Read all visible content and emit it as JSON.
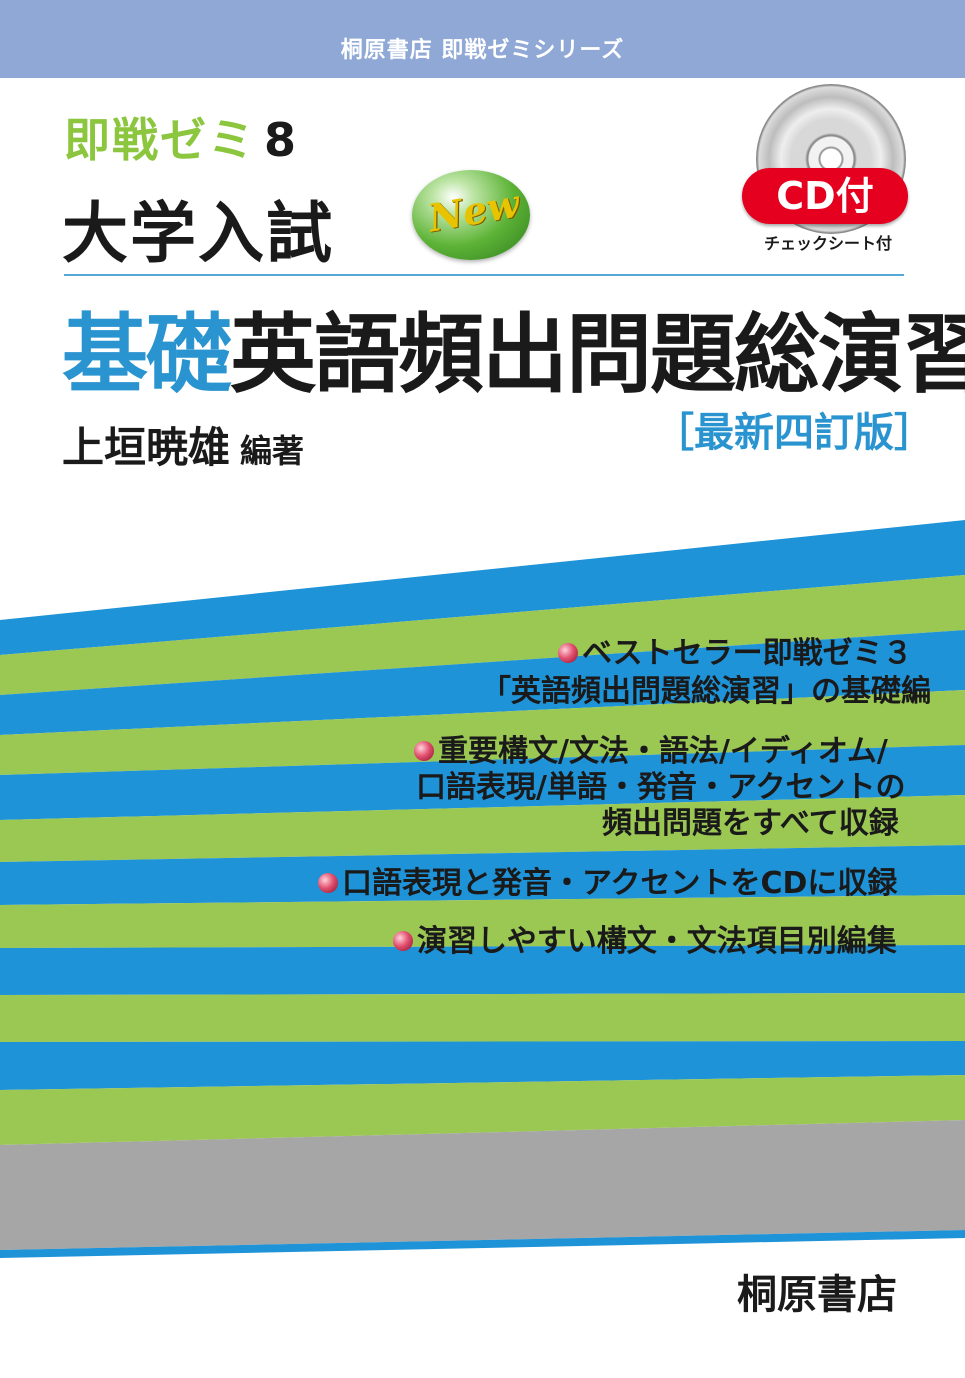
{
  "series_label": "桐原書店 即戦ゼミシリーズ",
  "volume": {
    "label": "即戦ゼミ",
    "number": "8"
  },
  "exam_title": "大学入試",
  "new_badge": "New",
  "subject": {
    "highlight": "基礎",
    "rest": "英語頻出問題総演習"
  },
  "edition": "［最新四訂版］",
  "author": {
    "name": "上垣暁雄",
    "role": "編著"
  },
  "cd": {
    "label": "CD付",
    "note": "チェックシート付"
  },
  "features": [
    {
      "lines": [
        "ベストセラー即戦ゼミ３",
        "「英語頻出問題総演習」の基礎編"
      ]
    },
    {
      "lines": [
        "重要構文/文法・語法/イディオム/",
        "口語表現/単語・発音・アクセントの",
        "頻出問題をすべて収録"
      ]
    },
    {
      "lines": [
        "口語表現と発音・アクセントをCDに収録"
      ]
    },
    {
      "lines": [
        "演習しやすい構文・文法項目別編集"
      ]
    }
  ],
  "publisher": "桐原書店",
  "colors": {
    "top_band": "#8fa8d6",
    "blue_stripe": "#1f93d7",
    "green_stripe": "#9bc753",
    "gray_stripe": "#a6a6a6",
    "accent_blue": "#2a94d0",
    "accent_green": "#8cc63f",
    "cd_red": "#e6001f"
  }
}
